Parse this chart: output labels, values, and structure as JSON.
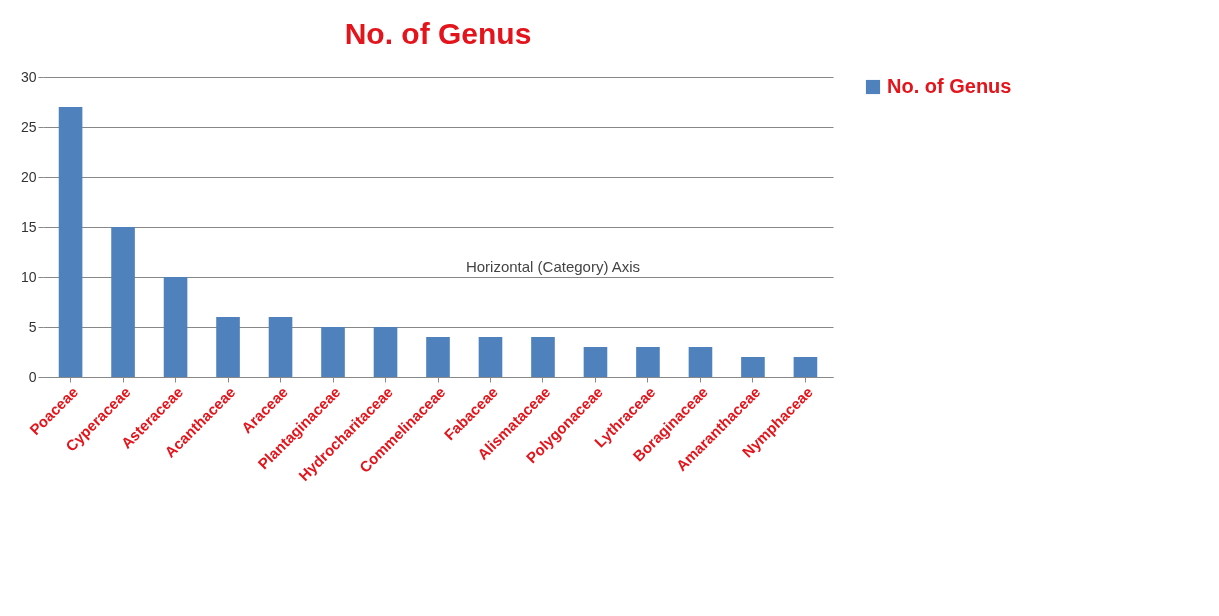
{
  "chart_data": {
    "type": "bar",
    "title": "No. of Genus",
    "categories": [
      "Poaceae",
      "Cyperaceae",
      "Asteraceae",
      "Acanthaceae",
      "Araceae",
      "Plantaginaceae",
      "Hydrocharitaceae",
      "Commelinaceae",
      "Fabaceae",
      "Alismataceae",
      "Polygonaceae",
      "Lythraceae",
      "Boraginaceae",
      "Amaranthaceae",
      "Nymphaceae"
    ],
    "series": [
      {
        "name": "No. of Genus",
        "color": "#4f81bd",
        "values": [
          27,
          15,
          10,
          6,
          6,
          5,
          5,
          4,
          4,
          4,
          3,
          3,
          3,
          2,
          2
        ]
      }
    ],
    "ylim": [
      0,
      30
    ],
    "yticks": [
      0,
      5,
      10,
      15,
      20,
      25,
      30
    ],
    "grid": "y",
    "legend": "right",
    "annotations": [
      "Horizontal (Category) Axis"
    ]
  }
}
